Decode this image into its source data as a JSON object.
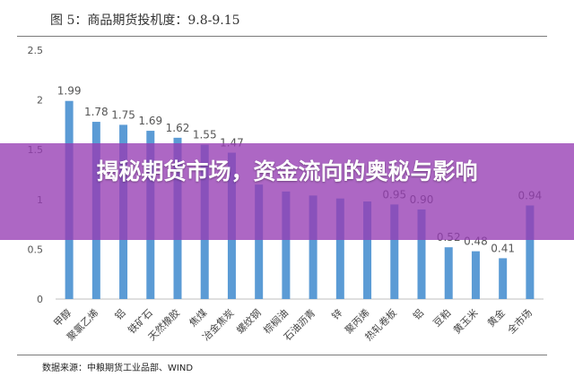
{
  "figure": {
    "title": "图 5：商品期货投机度：9.8-9.15",
    "source": "数据来源：中粮期货工业品部、WIND"
  },
  "banner": {
    "text": "揭秘期货市场，资金流向的奥秘与影响"
  },
  "colors": {
    "bar": "#5B9BD5",
    "banner": "#963CB4",
    "axis": "#bfbfbf",
    "text": "#555555"
  },
  "chart_data": {
    "type": "bar",
    "categories": [
      "甲醇",
      "聚氯乙烯",
      "铝",
      "铁矿石",
      "天然橡胶",
      "焦煤",
      "冶金焦炭",
      "螺纹钢",
      "棕榈油",
      "石油沥青",
      "锌",
      "聚丙烯",
      "热轧卷板",
      "铝",
      "豆粕",
      "黄玉米",
      "黄金",
      "全市场"
    ],
    "values": [
      1.99,
      1.78,
      1.75,
      1.69,
      1.62,
      1.55,
      1.47,
      1.15,
      1.08,
      1.04,
      1.01,
      0.98,
      0.95,
      0.9,
      0.52,
      0.48,
      0.41,
      0.94
    ],
    "data_labels": [
      "1.99",
      "1.78",
      "1.75",
      "1.69",
      "1.62",
      "1.55",
      "1.47",
      "",
      "",
      "",
      "",
      "",
      "0.95",
      "0.90",
      "0.52",
      "0.48",
      "0.41",
      "0.94"
    ],
    "yticks": [
      "0",
      "0.5",
      "1",
      "1.5",
      "2",
      "2.5"
    ],
    "ylim": [
      0,
      2.5
    ],
    "grid": false,
    "legend": "none"
  }
}
